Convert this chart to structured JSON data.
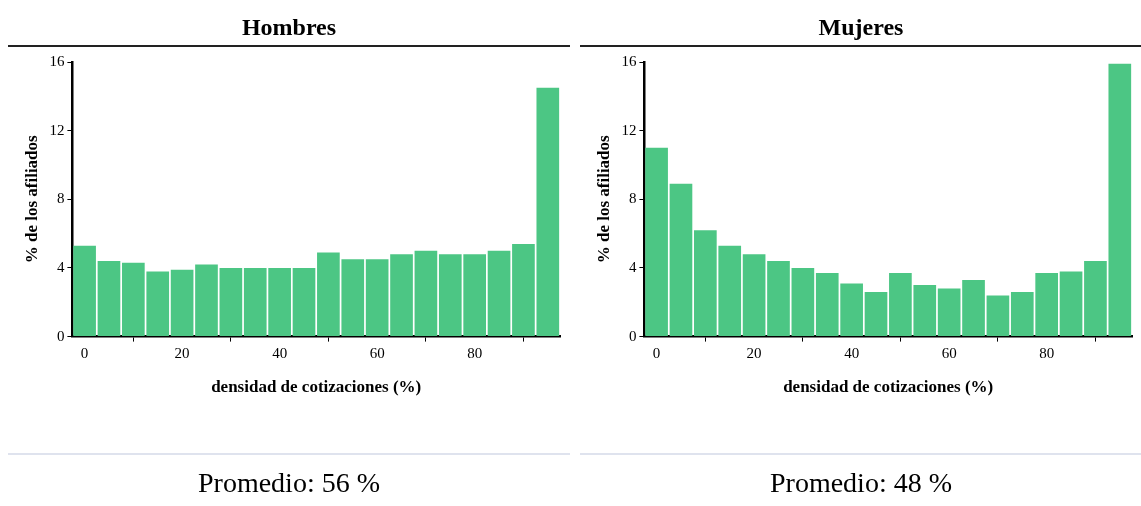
{
  "chart_data": [
    {
      "type": "histogram",
      "title": "Hombres",
      "xlabel": "densidad de cotizaciones (%)",
      "ylabel": "% de los afiliados",
      "bins": [
        -2.5,
        2.5,
        7.5,
        12.5,
        17.5,
        22.5,
        27.5,
        32.5,
        37.5,
        42.5,
        47.5,
        52.5,
        57.5,
        62.5,
        67.5,
        72.5,
        77.5,
        82.5,
        87.5,
        92.5,
        97.5
      ],
      "values": [
        5.3,
        4.4,
        4.3,
        3.8,
        3.9,
        4.2,
        4.0,
        4.0,
        4.0,
        4.0,
        4.9,
        4.5,
        4.5,
        4.8,
        5.0,
        4.8,
        4.8,
        5.0,
        5.4,
        14.5
      ],
      "color": "#4cc684",
      "xlim": [
        -2.5,
        97.5
      ],
      "ylim": [
        0,
        16
      ],
      "xticks": [
        0,
        20,
        40,
        60,
        80
      ],
      "yticks": [
        0,
        4,
        8,
        12,
        16
      ],
      "annotations": [
        "Promedio: 56 %"
      ]
    },
    {
      "type": "histogram",
      "title": "Mujeres",
      "xlabel": "densidad de cotizaciones (%)",
      "ylabel": "% de los afiliados",
      "bins": [
        -2.5,
        2.5,
        7.5,
        12.5,
        17.5,
        22.5,
        27.5,
        32.5,
        37.5,
        42.5,
        47.5,
        52.5,
        57.5,
        62.5,
        67.5,
        72.5,
        77.5,
        82.5,
        87.5,
        92.5,
        97.5
      ],
      "values": [
        11.0,
        8.9,
        6.2,
        5.3,
        4.8,
        4.4,
        4.0,
        3.7,
        3.1,
        2.6,
        3.7,
        3.0,
        2.8,
        3.3,
        2.4,
        2.6,
        3.7,
        3.8,
        4.4,
        15.9
      ],
      "color": "#4cc684",
      "xlim": [
        -2.5,
        97.5
      ],
      "ylim": [
        0,
        16
      ],
      "xticks": [
        0,
        20,
        40,
        60,
        80
      ],
      "yticks": [
        0,
        4,
        8,
        12,
        16
      ],
      "annotations": [
        "Promedio: 48 %"
      ]
    }
  ]
}
